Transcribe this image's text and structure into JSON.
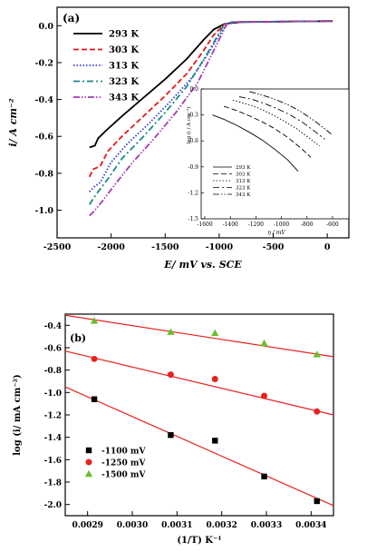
{
  "figure": {
    "panels": [
      "(a)",
      "(b)"
    ]
  },
  "chart_data": [
    {
      "id": "a-main",
      "type": "line",
      "panel_label": "(a)",
      "xlabel": "E/ mV vs. SCE",
      "ylabel": "i/ A cm⁻²",
      "xlim": [
        -2500,
        200
      ],
      "ylim": [
        -1.15,
        0.1
      ],
      "xticks": [
        -2500,
        -2000,
        -1500,
        -1000,
        -500,
        0
      ],
      "xtick_labels": [
        "-2500",
        "-2000",
        "-1500",
        "-1000",
        "-500",
        "0"
      ],
      "yticks": [
        0.0,
        -0.2,
        -0.4,
        -0.6,
        -0.8,
        -1.0
      ],
      "ytick_labels": [
        "0.0",
        "-0.2",
        "-0.4",
        "-0.6",
        "-0.8",
        "-1.0"
      ],
      "grid": false,
      "legend_position": "top-left",
      "series": [
        {
          "name": "293 K",
          "color": "#000000",
          "dash": "solid",
          "points": [
            [
              -2200,
              -0.66
            ],
            [
              -2150,
              -0.65
            ],
            [
              -2120,
              -0.61
            ],
            [
              -2050,
              -0.57
            ],
            [
              -1900,
              -0.49
            ],
            [
              -1700,
              -0.39
            ],
            [
              -1500,
              -0.29
            ],
            [
              -1300,
              -0.18
            ],
            [
              -1150,
              -0.08
            ],
            [
              -1050,
              -0.02
            ],
            [
              -950,
              0.01
            ],
            [
              -800,
              0.02
            ],
            [
              50,
              0.025
            ]
          ]
        },
        {
          "name": "303 K",
          "color": "#e31a1c",
          "dash": "dashed",
          "points": [
            [
              -2200,
              -0.82
            ],
            [
              -2170,
              -0.78
            ],
            [
              -2100,
              -0.76
            ],
            [
              -2030,
              -0.68
            ],
            [
              -1900,
              -0.6
            ],
            [
              -1700,
              -0.49
            ],
            [
              -1500,
              -0.38
            ],
            [
              -1300,
              -0.26
            ],
            [
              -1150,
              -0.14
            ],
            [
              -1050,
              -0.05
            ],
            [
              -950,
              0.01
            ],
            [
              -850,
              0.02
            ],
            [
              50,
              0.025
            ]
          ]
        },
        {
          "name": "313 K",
          "color": "#3b3bd8",
          "dash": "dotted",
          "points": [
            [
              -2200,
              -0.9
            ],
            [
              -2150,
              -0.87
            ],
            [
              -2100,
              -0.85
            ],
            [
              -2000,
              -0.74
            ],
            [
              -1850,
              -0.64
            ],
            [
              -1650,
              -0.53
            ],
            [
              -1450,
              -0.41
            ],
            [
              -1250,
              -0.28
            ],
            [
              -1100,
              -0.15
            ],
            [
              -1000,
              -0.05
            ],
            [
              -920,
              0.01
            ],
            [
              -850,
              0.02
            ],
            [
              50,
              0.025
            ]
          ]
        },
        {
          "name": "323 K",
          "color": "#1a8a8a",
          "dash": "dashdot",
          "points": [
            [
              -2200,
              -0.97
            ],
            [
              -2180,
              -0.95
            ],
            [
              -2120,
              -0.9
            ],
            [
              -2030,
              -0.83
            ],
            [
              -1900,
              -0.72
            ],
            [
              -1700,
              -0.6
            ],
            [
              -1500,
              -0.47
            ],
            [
              -1300,
              -0.33
            ],
            [
              -1150,
              -0.19
            ],
            [
              -1030,
              -0.07
            ],
            [
              -950,
              0.01
            ],
            [
              -880,
              0.02
            ],
            [
              50,
              0.025
            ]
          ]
        },
        {
          "name": "343 K",
          "color": "#a13db0",
          "dash": "dashdotdot",
          "points": [
            [
              -2200,
              -1.03
            ],
            [
              -2150,
              -1.0
            ],
            [
              -2080,
              -0.95
            ],
            [
              -1950,
              -0.85
            ],
            [
              -1800,
              -0.74
            ],
            [
              -1600,
              -0.61
            ],
            [
              -1400,
              -0.47
            ],
            [
              -1200,
              -0.31
            ],
            [
              -1080,
              -0.17
            ],
            [
              -980,
              -0.05
            ],
            [
              -930,
              0.01
            ],
            [
              -860,
              0.02
            ],
            [
              50,
              0.025
            ]
          ]
        }
      ]
    },
    {
      "id": "a-inset",
      "type": "line",
      "ylabel": "log (i / A cm⁻²)",
      "xlabel": "η / mV",
      "xlim": [
        -1600,
        -500
      ],
      "ylim": [
        -1.5,
        0.0
      ],
      "xticks": [
        -1600,
        -1400,
        -1200,
        -1000,
        -800,
        -600
      ],
      "xtick_labels": [
        "-1600",
        "-1400",
        "-1200",
        "-1000",
        "-800",
        "-600"
      ],
      "yticks": [
        0.0,
        -0.3,
        -0.6,
        -0.9,
        -1.2,
        -1.5
      ],
      "ytick_labels": [
        "0.0",
        "-0.3",
        "-0.6",
        "-0.9",
        "-1.2",
        "-1.5"
      ],
      "grid": false,
      "legend_position": "bottom-left",
      "series": [
        {
          "name": "293 K",
          "dash": "solid",
          "points": [
            [
              -1540,
              -0.3
            ],
            [
              -1450,
              -0.35
            ],
            [
              -1350,
              -0.42
            ],
            [
              -1250,
              -0.5
            ],
            [
              -1150,
              -0.59
            ],
            [
              -1050,
              -0.7
            ],
            [
              -950,
              -0.82
            ],
            [
              -870,
              -0.95
            ]
          ]
        },
        {
          "name": "303 K",
          "dash": "dashed",
          "points": [
            [
              -1450,
              -0.2
            ],
            [
              -1350,
              -0.25
            ],
            [
              -1250,
              -0.31
            ],
            [
              -1150,
              -0.38
            ],
            [
              -1050,
              -0.46
            ],
            [
              -950,
              -0.56
            ],
            [
              -850,
              -0.68
            ],
            [
              -770,
              -0.79
            ]
          ]
        },
        {
          "name": "313 K",
          "dash": "dotted",
          "points": [
            [
              -1380,
              -0.13
            ],
            [
              -1280,
              -0.17
            ],
            [
              -1180,
              -0.22
            ],
            [
              -1080,
              -0.29
            ],
            [
              -980,
              -0.37
            ],
            [
              -880,
              -0.46
            ],
            [
              -780,
              -0.57
            ],
            [
              -700,
              -0.66
            ]
          ]
        },
        {
          "name": "323 K",
          "dash": "dashdot",
          "points": [
            [
              -1330,
              -0.09
            ],
            [
              -1230,
              -0.12
            ],
            [
              -1130,
              -0.17
            ],
            [
              -1030,
              -0.23
            ],
            [
              -930,
              -0.3
            ],
            [
              -830,
              -0.39
            ],
            [
              -730,
              -0.5
            ],
            [
              -660,
              -0.58
            ]
          ]
        },
        {
          "name": "343 K",
          "dash": "dashdotdot",
          "points": [
            [
              -1250,
              -0.03
            ],
            [
              -1150,
              -0.07
            ],
            [
              -1050,
              -0.12
            ],
            [
              -950,
              -0.18
            ],
            [
              -850,
              -0.26
            ],
            [
              -750,
              -0.36
            ],
            [
              -660,
              -0.46
            ],
            [
              -610,
              -0.52
            ]
          ]
        }
      ]
    },
    {
      "id": "b",
      "type": "scatter",
      "panel_label": "(b)",
      "xlabel": "(1/T) K⁻¹",
      "ylabel": "log (i/ mA cm⁻²)",
      "xlim": [
        0.00285,
        0.00345
      ],
      "ylim": [
        -2.1,
        -0.3
      ],
      "xticks": [
        0.0029,
        0.003,
        0.0031,
        0.0032,
        0.0033,
        0.0034
      ],
      "xtick_labels": [
        "0.0029",
        "0.0030",
        "0.0031",
        "0.0032",
        "0.0033",
        "0.0034"
      ],
      "yticks": [
        -0.4,
        -0.6,
        -0.8,
        -1.0,
        -1.2,
        -1.4,
        -1.6,
        -1.8,
        -2.0
      ],
      "ytick_labels": [
        "-0.4",
        "-0.6",
        "-0.8",
        "-1.0",
        "-1.2",
        "-1.4",
        "-1.6",
        "-1.8",
        "-2.0"
      ],
      "grid": false,
      "legend_position": "bottom-left",
      "fit_line_color": "#e8231f",
      "series": [
        {
          "name": "-1100 mV",
          "marker": "square",
          "color": "#000000",
          "x": [
            0.002915,
            0.003086,
            0.003185,
            0.003295,
            0.003413
          ],
          "y": [
            -1.06,
            -1.38,
            -1.43,
            -1.75,
            -1.97
          ],
          "fit": [
            [
              0.00285,
              -0.95
            ],
            [
              0.00345,
              -2.01
            ]
          ]
        },
        {
          "name": "-1250 mV",
          "marker": "circle",
          "color": "#e8231f",
          "x": [
            0.002915,
            0.003086,
            0.003185,
            0.003295,
            0.003413
          ],
          "y": [
            -0.7,
            -0.84,
            -0.88,
            -1.03,
            -1.17
          ],
          "fit": [
            [
              0.00285,
              -0.63
            ],
            [
              0.00345,
              -1.2
            ]
          ]
        },
        {
          "name": "-1500 mV",
          "marker": "triangle",
          "color": "#6abf2e",
          "x": [
            0.002915,
            0.003086,
            0.003185,
            0.003295,
            0.003413
          ],
          "y": [
            -0.36,
            -0.46,
            -0.47,
            -0.56,
            -0.66
          ],
          "fit": [
            [
              0.00285,
              -0.31
            ],
            [
              0.00345,
              -0.68
            ]
          ]
        }
      ]
    }
  ]
}
